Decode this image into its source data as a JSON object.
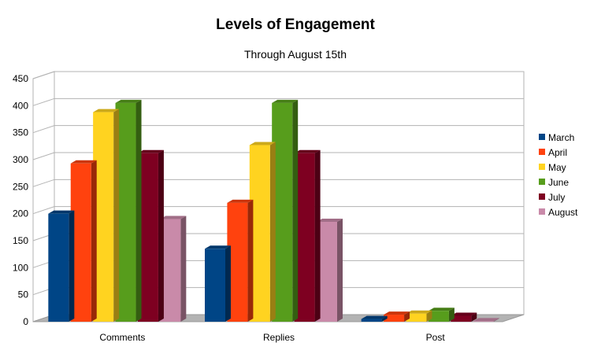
{
  "chart_data": {
    "type": "bar",
    "title": "Levels of Engagement",
    "subtitle": "Through August 15th",
    "xlabel": "",
    "ylabel": "",
    "categories": [
      "Comments",
      "Replies",
      "Post"
    ],
    "ylim": [
      0,
      450
    ],
    "yticks": [
      0,
      50,
      100,
      150,
      200,
      250,
      300,
      350,
      400,
      450
    ],
    "grid": true,
    "legend": "right",
    "series": [
      {
        "name": "March",
        "color": "#004586",
        "values": [
          200,
          135,
          5
        ]
      },
      {
        "name": "April",
        "color": "#ff420e",
        "values": [
          293,
          220,
          13
        ]
      },
      {
        "name": "May",
        "color": "#ffd320",
        "values": [
          388,
          327,
          15
        ]
      },
      {
        "name": "June",
        "color": "#579d1c",
        "values": [
          405,
          405,
          20
        ]
      },
      {
        "name": "July",
        "color": "#7e0021",
        "values": [
          312,
          312,
          11
        ]
      },
      {
        "name": "August",
        "color": "#c98aa9",
        "values": [
          190,
          185,
          1
        ]
      }
    ]
  }
}
